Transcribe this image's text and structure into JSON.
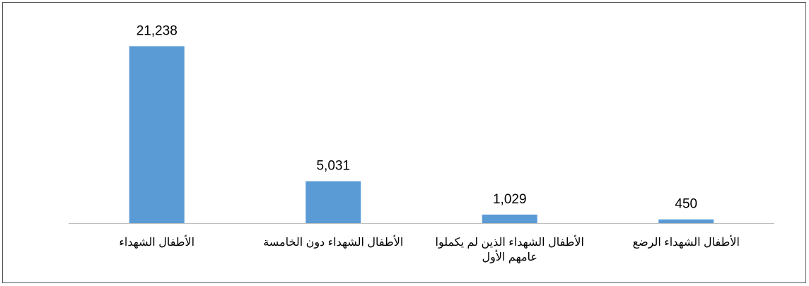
{
  "chart_data": {
    "type": "bar",
    "categories": [
      "الأطفال الشهداء",
      "الأطفال الشهداء دون الخامسة",
      "الأطفال الشهداء الذين لم يكملوا عامهم الأول",
      "الأطفال الشهداء الرضع"
    ],
    "values": [
      21238,
      5031,
      1029,
      450
    ],
    "data_labels": [
      "21,238",
      "5,031",
      "1,029",
      "450"
    ],
    "title": "",
    "xlabel": "",
    "ylabel": "",
    "ylim": [
      0,
      25000
    ],
    "grid": false,
    "legend": "none",
    "bar_color": "#5B9BD5",
    "axis_color": "#BFBFBF"
  }
}
